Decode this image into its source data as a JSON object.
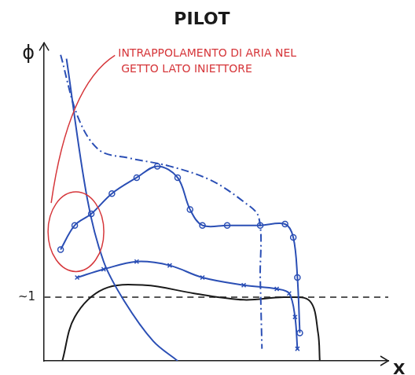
{
  "chart_data": {
    "type": "line",
    "title": "PILOT",
    "x_label": "X",
    "y_label": "ϕ",
    "xlim": [
      0,
      10
    ],
    "ylim": [
      0,
      5
    ],
    "xticks": [],
    "yticks": [
      {
        "value": 1,
        "label": "~1"
      }
    ],
    "tick_labels": "y",
    "grid": false,
    "annotations": [
      "INTRAPPOLAMENTO DI ARIA NEL GETTO LATO INIETTORE"
    ],
    "series": [
      {
        "color": "#2b4fb5",
        "line_style": "solid",
        "marker": "none",
        "x": [
          0.65,
          1.25,
          1.73,
          2.33,
          3.17,
          3.88
        ],
        "values": [
          4.75,
          2.56,
          1.56,
          0.94,
          0.31,
          0
        ]
      },
      {
        "color": "#2b4fb5",
        "line_style": "dashdot",
        "marker": "none",
        "x": [
          0.48,
          1.0,
          1.61,
          2.45,
          3.65,
          4.84,
          5.8,
          6.24,
          6.28,
          6.33
        ],
        "values": [
          4.81,
          3.81,
          3.31,
          3.19,
          3.06,
          2.84,
          2.5,
          2.25,
          1.31,
          0.19
        ]
      },
      {
        "color": "#2b4fb5",
        "line_style": "solid",
        "marker": "circle",
        "x": [
          0.48,
          0.89,
          1.37,
          1.97,
          2.69,
          3.29,
          3.88,
          4.24,
          4.6,
          5.32,
          6.28,
          7.0,
          7.24,
          7.36,
          7.43
        ],
        "values": [
          1.75,
          2.13,
          2.31,
          2.63,
          2.88,
          3.06,
          2.88,
          2.38,
          2.13,
          2.13,
          2.13,
          2.15,
          1.94,
          1.31,
          0.44
        ]
      },
      {
        "color": "#2b4fb5",
        "line_style": "solid",
        "marker": "x",
        "x": [
          0.96,
          1.73,
          2.69,
          3.65,
          4.6,
          5.8,
          6.76,
          7.12,
          7.29,
          7.36
        ],
        "values": [
          1.31,
          1.44,
          1.56,
          1.5,
          1.31,
          1.19,
          1.13,
          1.06,
          0.69,
          0.19
        ]
      },
      {
        "color": "#1a1a1a",
        "line_style": "solid",
        "marker": "none",
        "x": [
          0.53,
          0.89,
          1.73,
          2.93,
          4.36,
          5.8,
          7.0,
          7.72,
          7.96,
          8.01
        ],
        "values": [
          0,
          0.69,
          1.13,
          1.19,
          1.06,
          0.96,
          1.0,
          0.94,
          0.44,
          0
        ]
      },
      {
        "color": "#555555",
        "line_style": "dashed",
        "marker": "none",
        "x": [
          0,
          10
        ],
        "values": [
          1,
          1
        ]
      }
    ]
  }
}
